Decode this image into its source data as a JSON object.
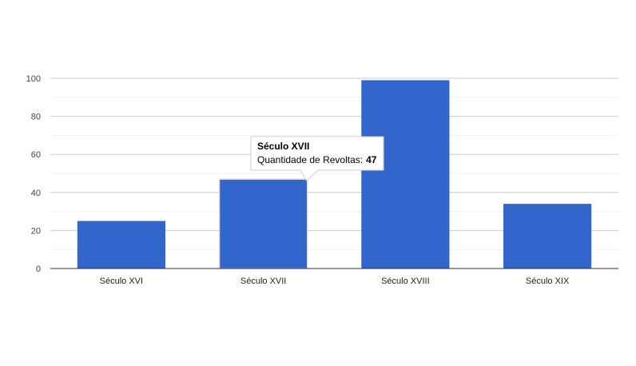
{
  "chart_data": {
    "type": "bar",
    "categories": [
      "Século XVI",
      "Século XVII",
      "Século XVIII",
      "Século XIX"
    ],
    "values": [
      25,
      47,
      99,
      34
    ],
    "ylim": [
      0,
      100
    ],
    "yticks": [
      0,
      20,
      40,
      60,
      80,
      100
    ],
    "yticks_labels": [
      "0",
      "20",
      "40",
      "60",
      "80",
      "100"
    ],
    "grid": true,
    "bar_color": "#3366cc",
    "highlighted_index": 1,
    "tooltip": {
      "title": "Século XVII",
      "label": "Quantidade de Revoltas:",
      "value": "47"
    }
  }
}
